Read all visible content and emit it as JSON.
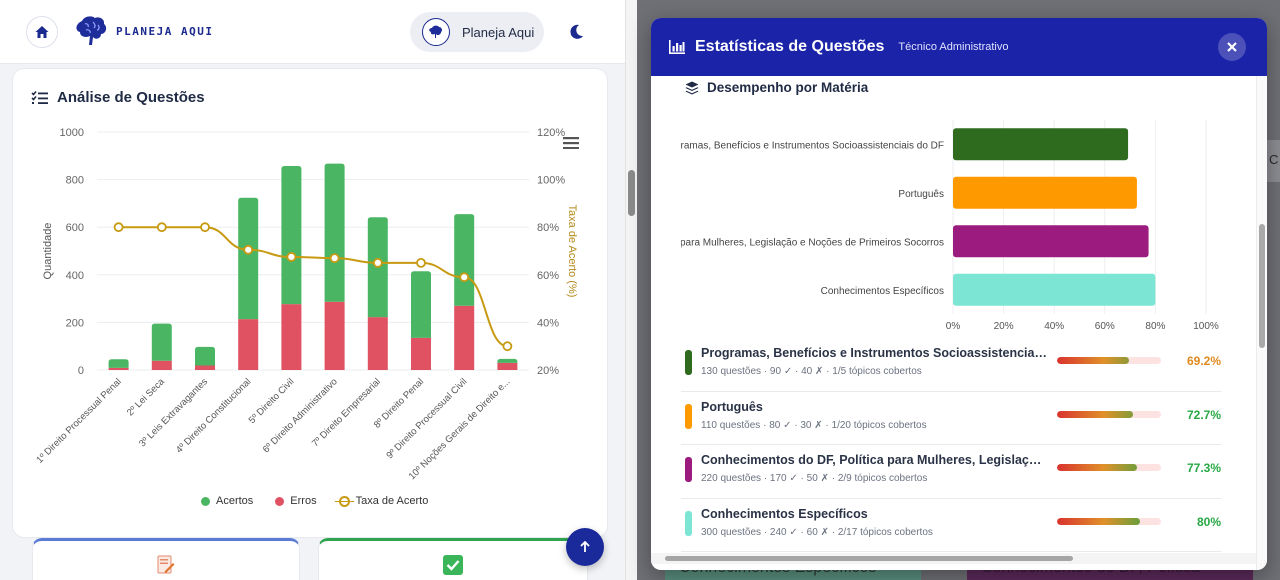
{
  "app": {
    "logo_text": "PLANEJA AQUI",
    "user_name": "Planeja Aqui"
  },
  "analysis": {
    "title": "Análise de Questões",
    "legend": {
      "acertos": "Acertos",
      "erros": "Erros",
      "taxa": "Taxa de Acerto"
    }
  },
  "chart_data": {
    "type": "bar",
    "stacked": true,
    "categories": [
      "1º Direito Processual Penal",
      "2º Lei Seca",
      "3º Leis Extravagantes",
      "4º Direito Constitucional",
      "5º Direito Civil",
      "6º Direito Administrativo",
      "7º Direito Empresarial",
      "8º Direito Penal",
      "9º Direito Processual Civil",
      "10º Noções Gerais de Direito e..."
    ],
    "series": [
      {
        "name": "Acertos",
        "type": "bar",
        "axis": "left",
        "color": "#4ab563",
        "values": [
          36,
          156,
          78,
          510,
          580,
          580,
          420,
          280,
          385,
          17
        ]
      },
      {
        "name": "Erros",
        "type": "bar",
        "axis": "left",
        "color": "#e05262",
        "values": [
          9,
          39,
          19,
          214,
          277,
          287,
          222,
          135,
          270,
          30
        ]
      },
      {
        "name": "Taxa de Acerto",
        "type": "line",
        "axis": "right",
        "color": "#c79a12",
        "values": [
          80,
          80,
          80,
          70.5,
          67.5,
          67,
          65,
          65,
          59,
          30
        ]
      }
    ],
    "ylabel": "Quantidade",
    "y2label": "Taxa de Acerto (%)",
    "ylim": [
      0,
      1000
    ],
    "yticks": [
      "0",
      "200",
      "400",
      "600",
      "800",
      "1000"
    ],
    "y2lim": [
      20,
      120
    ],
    "y2ticks": [
      "20%",
      "40%",
      "60%",
      "80%",
      "100%",
      "120%"
    ],
    "legend_position": "bottom",
    "grid": true
  },
  "mini_cards": [
    {
      "icon": "edit-document-icon",
      "accent": "#5b7bd5"
    },
    {
      "icon": "check-box-icon",
      "accent": "#2ea44f"
    }
  ],
  "modal": {
    "title": "Estatísticas de Questões",
    "subtitle": "Técnico Administrativo",
    "section_title": "Desempenho por Matéria",
    "chart_data": {
      "type": "bar",
      "orientation": "horizontal",
      "categories": [
        "Programas, Benefícios e Instrumentos Socioassistenciais do DF",
        "Português",
        "Conhecimentos do DF, Política para Mulheres, Legislação e Noções de Primeiros Socorros",
        "Conhecimentos Específicos"
      ],
      "display_labels": [
        "ogramas, Benefícios e Instrumentos Socioassistenciais do DF",
        "Português",
        "para Mulheres, Legislação e Noções de Primeiros Socorros",
        "Conhecimentos Específicos"
      ],
      "values": [
        69.2,
        72.7,
        77.3,
        80
      ],
      "colors": [
        "#2e6b1f",
        "#ff9900",
        "#9b1b7e",
        "#7ce5d4"
      ],
      "xlim": [
        0,
        100
      ],
      "xticks": [
        "0%",
        "20%",
        "40%",
        "60%",
        "80%",
        "100%"
      ],
      "grid": true
    },
    "subjects": [
      {
        "name": "Programas, Benefícios e Instrumentos Socioassistenciais do DF",
        "meta": "130 questões · 90 ✓ · 40 ✗ · 1/5 tópicos cobertos",
        "percent": "69.2%",
        "rate": 69.2,
        "color": "#2e6b1f",
        "pct_color": "#e08a1e"
      },
      {
        "name": "Português",
        "meta": "110 questões · 80 ✓ · 30 ✗ · 1/20 tópicos cobertos",
        "percent": "72.7%",
        "rate": 72.7,
        "color": "#ff9900",
        "pct_color": "#27a844"
      },
      {
        "name": "Conhecimentos do DF, Política para Mulheres, Legislação e Noções de Primeiros Socorros",
        "meta": "220 questões · 170 ✓ · 50 ✗ · 2/9 tópicos cobertos",
        "percent": "77.3%",
        "rate": 77.3,
        "color": "#9b1b7e",
        "pct_color": "#27a844"
      },
      {
        "name": "Conhecimentos Específicos",
        "meta": "300 questões · 240 ✓ · 60 ✗ · 2/17 tópicos cobertos",
        "percent": "80%",
        "rate": 80,
        "color": "#7ce5d4",
        "pct_color": "#27a844"
      }
    ]
  },
  "background": {
    "card_1": "Conhecimentos Específicos",
    "card_2": "Conhecimentos do DF, Política",
    "edge_letter": "C"
  }
}
